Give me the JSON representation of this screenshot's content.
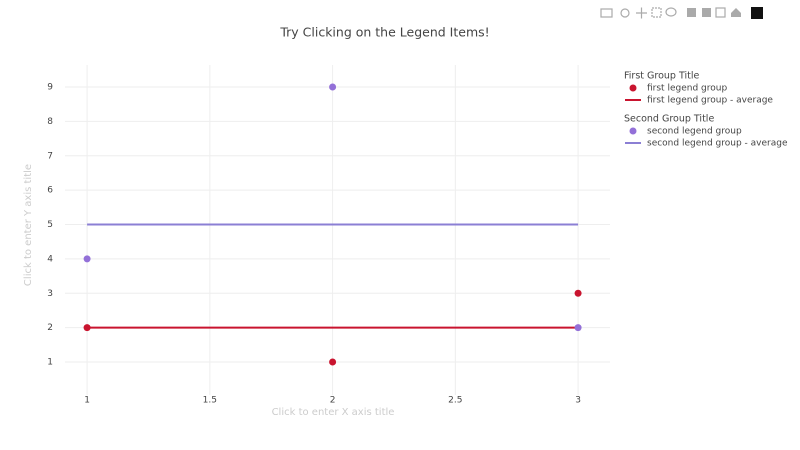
{
  "chart_data": {
    "type": "scatter",
    "title": "Try Clicking on the Legend Items!",
    "x_label": "Click to enter X axis title",
    "y_label": "Click to enter Y axis title",
    "x": [
      1,
      2,
      3
    ],
    "xlim": [
      0.91,
      3.13
    ],
    "xticks": [
      1,
      1.5,
      2,
      2.5,
      3
    ],
    "ylim": [
      0.04,
      9.64
    ],
    "yticks": [
      1,
      2,
      3,
      4,
      5,
      6,
      7,
      8,
      9
    ],
    "grid": true,
    "legend_groups": [
      {
        "title": "First Group Title",
        "series": [
          {
            "name": "first legend group",
            "mode": "markers",
            "color": "#c9142f",
            "values": [
              2,
              1,
              3
            ]
          },
          {
            "name": "first legend group - average",
            "mode": "lines",
            "color": "#c9142f",
            "values": [
              2,
              2,
              2
            ]
          }
        ]
      },
      {
        "title": "Second Group Title",
        "series": [
          {
            "name": "second legend group",
            "mode": "markers",
            "color": "#9370d8",
            "values": [
              4,
              9,
              2
            ]
          },
          {
            "name": "second legend group - average",
            "mode": "lines",
            "color": "#8b7fd4",
            "values": [
              5,
              5,
              5
            ]
          }
        ]
      }
    ]
  }
}
